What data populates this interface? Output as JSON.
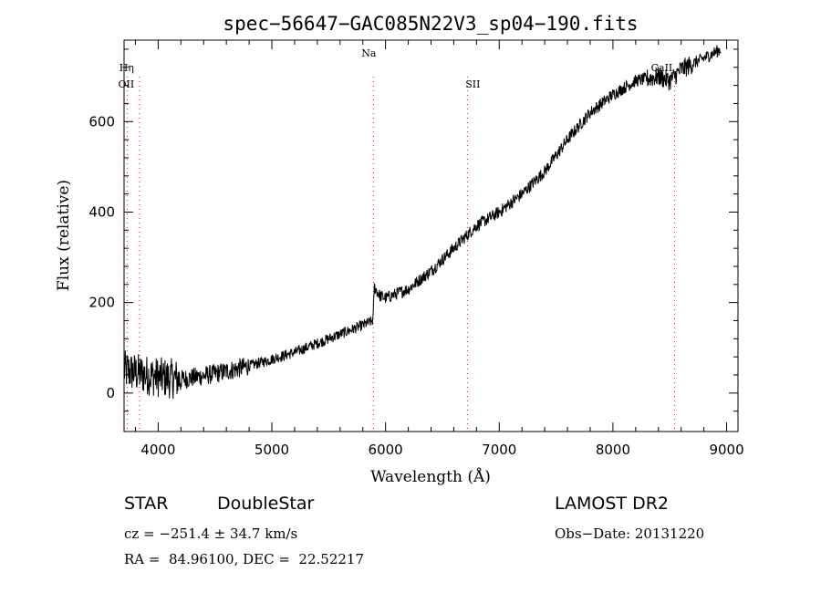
{
  "chart_data": {
    "type": "line",
    "title": "spec−56647−GAC085N22V3_sp04−190.fits",
    "xlabel": "Wavelength (Å)",
    "ylabel": "Flux (relative)",
    "xlim": [
      3700,
      9100
    ],
    "ylim": [
      -85,
      780
    ],
    "xticks": [
      4000,
      5000,
      6000,
      7000,
      8000,
      9000
    ],
    "yticks": [
      0,
      200,
      400,
      600
    ],
    "grid": false,
    "series": [
      {
        "x": [
          3700,
          3800,
          3900,
          4000,
          4200,
          4400,
          4600,
          4800,
          5000,
          5200,
          5400,
          5600,
          5800,
          5890,
          5900,
          5950,
          6000,
          6200,
          6400,
          6600,
          6700,
          6800,
          7000,
          7200,
          7400,
          7600,
          7800,
          8000,
          8200,
          8400,
          8500,
          8600,
          8800,
          8950
        ],
        "y": [
          50,
          45,
          40,
          35,
          30,
          38,
          48,
          60,
          75,
          90,
          110,
          130,
          150,
          160,
          235,
          215,
          210,
          230,
          270,
          320,
          345,
          370,
          400,
          440,
          490,
          560,
          620,
          660,
          690,
          700,
          690,
          715,
          740,
          760
        ]
      }
    ],
    "lines": [
      {
        "label": "Hη",
        "x": 3835
      },
      {
        "label": "OII",
        "x": 3727
      },
      {
        "label": "Na",
        "x": 5893
      },
      {
        "label": "SII",
        "x": 6720
      },
      {
        "label": "CaII",
        "x": 8542
      }
    ]
  },
  "info": {
    "object_class": "STAR",
    "subclass": "DoubleStar",
    "survey": "LAMOST DR2",
    "cz": "cz = −251.4 ± 34.7 km/s",
    "obs_date": "Obs−Date: 20131220",
    "radec": "RA =  84.96100, DEC =  22.52217"
  }
}
